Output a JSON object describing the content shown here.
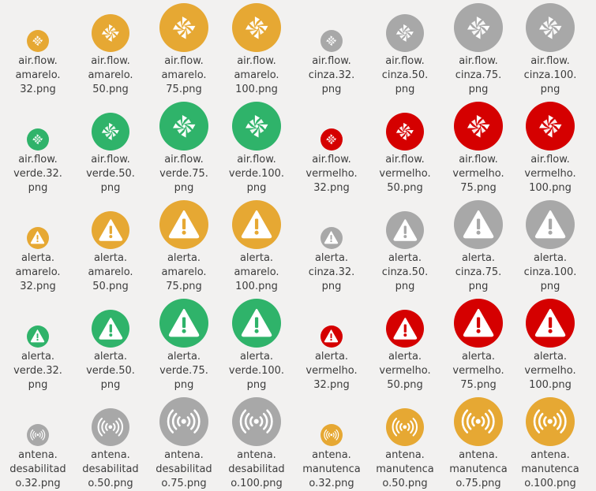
{
  "colors": {
    "amarelo": "#e6a833",
    "cinza": "#a8a8a8",
    "verde": "#2fb36a",
    "vermelho": "#d50000",
    "background": "#f2f1f0",
    "text": "#3c3c3c"
  },
  "files": [
    {
      "name": "air.flow.\namarelo.\n32.png",
      "icon": "airflow-icon",
      "color": "amarelo",
      "size": 32
    },
    {
      "name": "air.flow.\namarelo.\n50.png",
      "icon": "airflow-icon",
      "color": "amarelo",
      "size": 50
    },
    {
      "name": "air.flow.\namarelo.\n75.png",
      "icon": "airflow-icon",
      "color": "amarelo",
      "size": 75
    },
    {
      "name": "air.flow.\namarelo.\n100.png",
      "icon": "airflow-icon",
      "color": "amarelo",
      "size": 100
    },
    {
      "name": "air.flow.\ncinza.32.\npng",
      "icon": "airflow-icon",
      "color": "cinza",
      "size": 32
    },
    {
      "name": "air.flow.\ncinza.50.\npng",
      "icon": "airflow-icon",
      "color": "cinza",
      "size": 50
    },
    {
      "name": "air.flow.\ncinza.75.\npng",
      "icon": "airflow-icon",
      "color": "cinza",
      "size": 75
    },
    {
      "name": "air.flow.\ncinza.100.\npng",
      "icon": "airflow-icon",
      "color": "cinza",
      "size": 100
    },
    {
      "name": "air.flow.\nverde.32.\npng",
      "icon": "airflow-icon",
      "color": "verde",
      "size": 32
    },
    {
      "name": "air.flow.\nverde.50.\npng",
      "icon": "airflow-icon",
      "color": "verde",
      "size": 50
    },
    {
      "name": "air.flow.\nverde.75.\npng",
      "icon": "airflow-icon",
      "color": "verde",
      "size": 75
    },
    {
      "name": "air.flow.\nverde.100.\npng",
      "icon": "airflow-icon",
      "color": "verde",
      "size": 100
    },
    {
      "name": "air.flow.\nvermelho.\n32.png",
      "icon": "airflow-icon",
      "color": "vermelho",
      "size": 32
    },
    {
      "name": "air.flow.\nvermelho.\n50.png",
      "icon": "airflow-icon",
      "color": "vermelho",
      "size": 50
    },
    {
      "name": "air.flow.\nvermelho.\n75.png",
      "icon": "airflow-icon",
      "color": "vermelho",
      "size": 75
    },
    {
      "name": "air.flow.\nvermelho.\n100.png",
      "icon": "airflow-icon",
      "color": "vermelho",
      "size": 100
    },
    {
      "name": "alerta.\namarelo.\n32.png",
      "icon": "alert-icon",
      "color": "amarelo",
      "size": 32
    },
    {
      "name": "alerta.\namarelo.\n50.png",
      "icon": "alert-icon",
      "color": "amarelo",
      "size": 50
    },
    {
      "name": "alerta.\namarelo.\n75.png",
      "icon": "alert-icon",
      "color": "amarelo",
      "size": 75
    },
    {
      "name": "alerta.\namarelo.\n100.png",
      "icon": "alert-icon",
      "color": "amarelo",
      "size": 100
    },
    {
      "name": "alerta.\ncinza.32.\npng",
      "icon": "alert-icon",
      "color": "cinza",
      "size": 32
    },
    {
      "name": "alerta.\ncinza.50.\npng",
      "icon": "alert-icon",
      "color": "cinza",
      "size": 50
    },
    {
      "name": "alerta.\ncinza.75.\npng",
      "icon": "alert-icon",
      "color": "cinza",
      "size": 75
    },
    {
      "name": "alerta.\ncinza.100.\npng",
      "icon": "alert-icon",
      "color": "cinza",
      "size": 100
    },
    {
      "name": "alerta.\nverde.32.\npng",
      "icon": "alert-icon",
      "color": "verde",
      "size": 32
    },
    {
      "name": "alerta.\nverde.50.\npng",
      "icon": "alert-icon",
      "color": "verde",
      "size": 50
    },
    {
      "name": "alerta.\nverde.75.\npng",
      "icon": "alert-icon",
      "color": "verde",
      "size": 75
    },
    {
      "name": "alerta.\nverde.100.\npng",
      "icon": "alert-icon",
      "color": "verde",
      "size": 100
    },
    {
      "name": "alerta.\nvermelho.\n32.png",
      "icon": "alert-icon",
      "color": "vermelho",
      "size": 32
    },
    {
      "name": "alerta.\nvermelho.\n50.png",
      "icon": "alert-icon",
      "color": "vermelho",
      "size": 50
    },
    {
      "name": "alerta.\nvermelho.\n75.png",
      "icon": "alert-icon",
      "color": "vermelho",
      "size": 75
    },
    {
      "name": "alerta.\nvermelho.\n100.png",
      "icon": "alert-icon",
      "color": "vermelho",
      "size": 100
    },
    {
      "name": "antena.\ndesabilitad\no.32.png",
      "icon": "antenna-icon",
      "color": "cinza",
      "size": 32
    },
    {
      "name": "antena.\ndesabilitad\no.50.png",
      "icon": "antenna-icon",
      "color": "cinza",
      "size": 50
    },
    {
      "name": "antena.\ndesabilitad\no.75.png",
      "icon": "antenna-icon",
      "color": "cinza",
      "size": 75
    },
    {
      "name": "antena.\ndesabilitad\no.100.png",
      "icon": "antenna-icon",
      "color": "cinza",
      "size": 100
    },
    {
      "name": "antena.\nmanutenca\no.32.png",
      "icon": "antenna-icon",
      "color": "amarelo",
      "size": 32
    },
    {
      "name": "antena.\nmanutenca\no.50.png",
      "icon": "antenna-icon",
      "color": "amarelo",
      "size": 50
    },
    {
      "name": "antena.\nmanutenca\no.75.png",
      "icon": "antenna-icon",
      "color": "amarelo",
      "size": 75
    },
    {
      "name": "antena.\nmanutenca\no.100.png",
      "icon": "antenna-icon",
      "color": "amarelo",
      "size": 100
    }
  ]
}
